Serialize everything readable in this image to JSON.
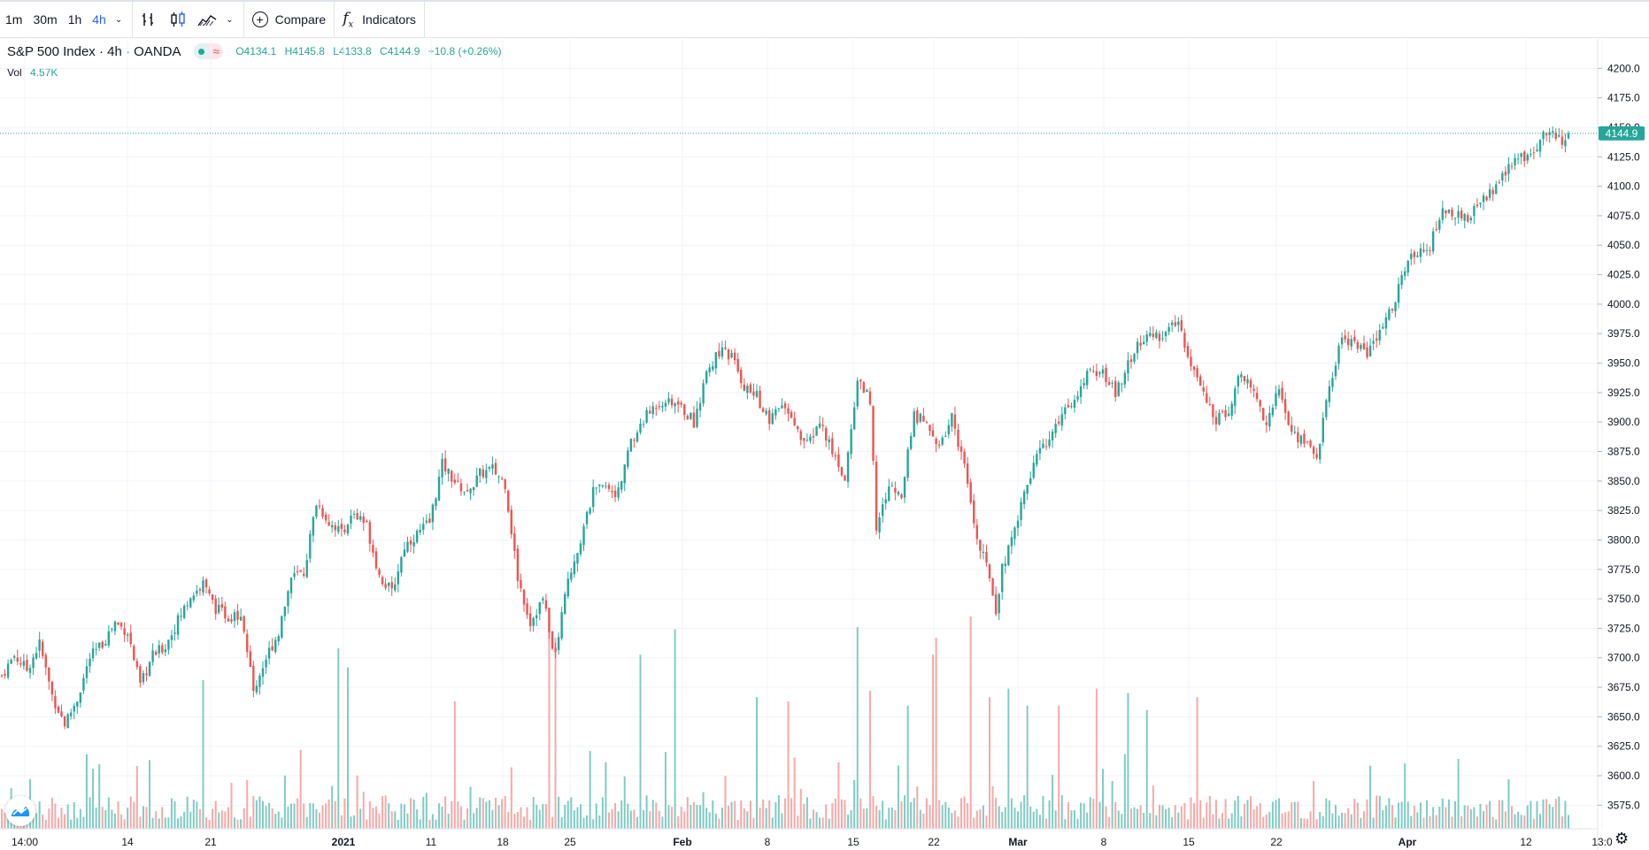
{
  "toolbar": {
    "intervals": [
      "1m",
      "30m",
      "1h",
      "4h"
    ],
    "active_interval": "4h",
    "compare_label": "Compare",
    "indicators_label": "Indicators"
  },
  "legend": {
    "symbol": "S&P 500 Index · 4h · OANDA",
    "open": "O4134.1",
    "high": "H4145.8",
    "low": "L4133.8",
    "close": "C4144.9",
    "change": "+10.8 (+0.26%)",
    "vol_label": "Vol",
    "vol_value": "4.57K"
  },
  "last_price_label": "4144.9",
  "colors": {
    "up": "#26a69a",
    "down": "#ef5350",
    "vol_up": "#80cbc4",
    "vol_down": "#f7a8a8",
    "grid": "#f0f3fa"
  },
  "chart_data": {
    "type": "candlestick",
    "title": "",
    "ylim": [
      3555,
      4225
    ],
    "y_ticks": [
      4200.0,
      4175.0,
      4150.0,
      4125.0,
      4100.0,
      4075.0,
      4050.0,
      4025.0,
      4000.0,
      3975.0,
      3950.0,
      3925.0,
      3900.0,
      3875.0,
      3850.0,
      3825.0,
      3800.0,
      3775.0,
      3750.0,
      3725.0,
      3700.0,
      3675.0,
      3650.0,
      3625.0,
      3600.0,
      3575.0
    ],
    "x_ticks": [
      "14:00",
      "14",
      "21",
      "2021",
      "11",
      "18",
      "25",
      "Feb",
      "8",
      "15",
      "22",
      "Mar",
      "8",
      "15",
      "22",
      "Apr",
      "12",
      "13:0"
    ],
    "last_price": 4144.9,
    "close_path": [
      [
        0,
        3685
      ],
      [
        4,
        3702
      ],
      [
        8,
        3690
      ],
      [
        12,
        3712
      ],
      [
        16,
        3668
      ],
      [
        20,
        3644
      ],
      [
        24,
        3665
      ],
      [
        28,
        3700
      ],
      [
        32,
        3712
      ],
      [
        36,
        3730
      ],
      [
        40,
        3722
      ],
      [
        44,
        3676
      ],
      [
        48,
        3702
      ],
      [
        52,
        3710
      ],
      [
        56,
        3732
      ],
      [
        60,
        3752
      ],
      [
        64,
        3762
      ],
      [
        68,
        3742
      ],
      [
        72,
        3735
      ],
      [
        76,
        3738
      ],
      [
        80,
        3672
      ],
      [
        84,
        3700
      ],
      [
        88,
        3722
      ],
      [
        92,
        3768
      ],
      [
        96,
        3772
      ],
      [
        100,
        3832
      ],
      [
        104,
        3815
      ],
      [
        108,
        3808
      ],
      [
        112,
        3822
      ],
      [
        116,
        3812
      ],
      [
        120,
        3770
      ],
      [
        124,
        3755
      ],
      [
        128,
        3795
      ],
      [
        132,
        3805
      ],
      [
        136,
        3815
      ],
      [
        140,
        3864
      ],
      [
        144,
        3850
      ],
      [
        148,
        3838
      ],
      [
        152,
        3856
      ],
      [
        156,
        3860
      ],
      [
        160,
        3848
      ],
      [
        164,
        3768
      ],
      [
        168,
        3730
      ],
      [
        172,
        3750
      ],
      [
        176,
        3700
      ],
      [
        180,
        3768
      ],
      [
        184,
        3800
      ],
      [
        188,
        3840
      ],
      [
        192,
        3845
      ],
      [
        196,
        3840
      ],
      [
        200,
        3882
      ],
      [
        204,
        3902
      ],
      [
        208,
        3915
      ],
      [
        212,
        3920
      ],
      [
        216,
        3912
      ],
      [
        220,
        3900
      ],
      [
        224,
        3940
      ],
      [
        228,
        3960
      ],
      [
        232,
        3955
      ],
      [
        236,
        3930
      ],
      [
        240,
        3922
      ],
      [
        244,
        3900
      ],
      [
        248,
        3915
      ],
      [
        252,
        3895
      ],
      [
        256,
        3880
      ],
      [
        260,
        3900
      ],
      [
        264,
        3875
      ],
      [
        268,
        3852
      ],
      [
        272,
        3935
      ],
      [
        276,
        3920
      ],
      [
        278,
        3810
      ],
      [
        282,
        3845
      ],
      [
        286,
        3840
      ],
      [
        290,
        3905
      ],
      [
        294,
        3900
      ],
      [
        298,
        3878
      ],
      [
        302,
        3905
      ],
      [
        306,
        3862
      ],
      [
        310,
        3800
      ],
      [
        314,
        3770
      ],
      [
        316,
        3742
      ],
      [
        318,
        3775
      ],
      [
        322,
        3810
      ],
      [
        326,
        3850
      ],
      [
        330,
        3875
      ],
      [
        334,
        3890
      ],
      [
        338,
        3912
      ],
      [
        342,
        3920
      ],
      [
        346,
        3945
      ],
      [
        350,
        3940
      ],
      [
        354,
        3925
      ],
      [
        358,
        3950
      ],
      [
        362,
        3968
      ],
      [
        366,
        3972
      ],
      [
        370,
        3975
      ],
      [
        374,
        3985
      ],
      [
        378,
        3950
      ],
      [
        382,
        3922
      ],
      [
        386,
        3900
      ],
      [
        390,
        3912
      ],
      [
        394,
        3942
      ],
      [
        398,
        3925
      ],
      [
        402,
        3900
      ],
      [
        406,
        3928
      ],
      [
        410,
        3890
      ],
      [
        414,
        3885
      ],
      [
        418,
        3870
      ],
      [
        422,
        3930
      ],
      [
        426,
        3972
      ],
      [
        430,
        3968
      ],
      [
        434,
        3958
      ],
      [
        438,
        3975
      ],
      [
        442,
        3998
      ],
      [
        446,
        4030
      ],
      [
        450,
        4046
      ],
      [
        454,
        4050
      ],
      [
        458,
        4080
      ],
      [
        462,
        4076
      ],
      [
        466,
        4070
      ],
      [
        470,
        4090
      ],
      [
        474,
        4096
      ],
      [
        478,
        4112
      ],
      [
        482,
        4122
      ],
      [
        486,
        4130
      ],
      [
        490,
        4142
      ],
      [
        494,
        4145
      ],
      [
        496,
        4135
      ],
      [
        498,
        4144.9
      ]
    ],
    "volume_spikes": [
      [
        64,
        70
      ],
      [
        107,
        85
      ],
      [
        110,
        76
      ],
      [
        144,
        60
      ],
      [
        174,
        96
      ],
      [
        176,
        90
      ],
      [
        203,
        82
      ],
      [
        214,
        94
      ],
      [
        240,
        62
      ],
      [
        250,
        60
      ],
      [
        272,
        95
      ],
      [
        276,
        65
      ],
      [
        288,
        58
      ],
      [
        296,
        82
      ],
      [
        297,
        90
      ],
      [
        308,
        100
      ],
      [
        314,
        62
      ],
      [
        320,
        66
      ],
      [
        326,
        58
      ],
      [
        336,
        58
      ],
      [
        348,
        66
      ],
      [
        358,
        64
      ],
      [
        364,
        56
      ],
      [
        380,
        62
      ]
    ]
  }
}
